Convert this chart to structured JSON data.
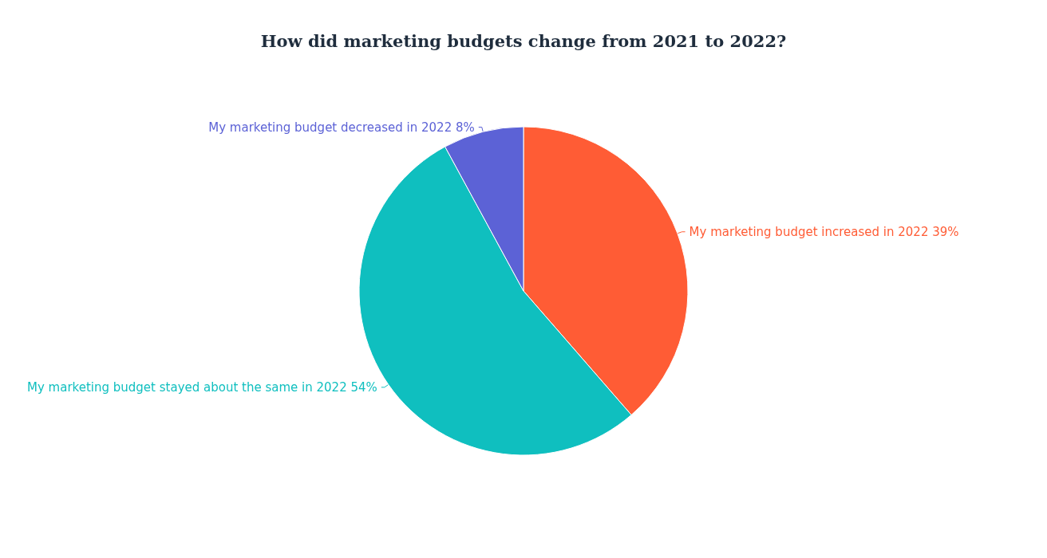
{
  "chart_data": {
    "type": "pie",
    "title": "How did marketing budgets change from 2021 to 2022?",
    "categories": [
      "My marketing budget increased in 2022",
      "My marketing budget stayed about the same in 2022",
      "My marketing budget decreased in 2022"
    ],
    "values": [
      39,
      54,
      8
    ],
    "value_labels": [
      "39%",
      "54%",
      "8%"
    ],
    "colors": [
      "#ff5c35",
      "#0fbfbf",
      "#5c62d6"
    ],
    "legend": false
  }
}
